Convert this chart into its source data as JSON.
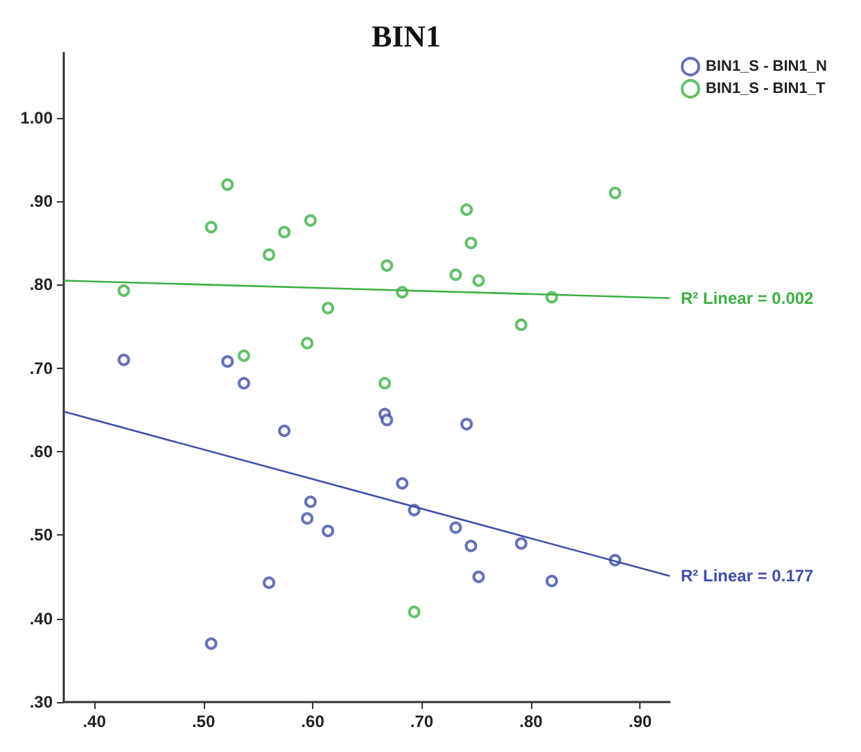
{
  "chart_data": {
    "type": "scatter",
    "title": "BIN1",
    "xlim": [
      0.372,
      0.927
    ],
    "xticks": [
      {
        "value": 0.4,
        "label": ".40"
      },
      {
        "value": 0.5,
        "label": ".50"
      },
      {
        "value": 0.6,
        "label": ".60"
      },
      {
        "value": 0.7,
        "label": ".70"
      },
      {
        "value": 0.8,
        "label": ".80"
      },
      {
        "value": 0.9,
        "label": ".90"
      }
    ],
    "ylim": [
      0.3,
      1.078
    ],
    "yticks": [
      {
        "value": 0.3,
        "label": ".30"
      },
      {
        "value": 0.4,
        "label": ".40"
      },
      {
        "value": 0.5,
        "label": ".50"
      },
      {
        "value": 0.6,
        "label": ".60"
      },
      {
        "value": 0.7,
        "label": ".70"
      },
      {
        "value": 0.8,
        "label": ".80"
      },
      {
        "value": 0.9,
        "label": ".90"
      },
      {
        "value": 1.0,
        "label": "1.00"
      }
    ],
    "grid": false,
    "legend": "top right",
    "marker": "circle",
    "series": [
      {
        "name": "BIN1_S - BIN1_N",
        "color": "#3f4fa8",
        "x": [
          0.427,
          0.522,
          0.537,
          0.574,
          0.666,
          0.668,
          0.682,
          0.693,
          0.598,
          0.595,
          0.614,
          0.56,
          0.507,
          0.731,
          0.745,
          0.752,
          0.741,
          0.791,
          0.819,
          0.877
        ],
        "values": [
          0.71,
          0.708,
          0.682,
          0.625,
          0.645,
          0.638,
          0.562,
          0.53,
          0.54,
          0.52,
          0.505,
          0.443,
          0.37,
          0.509,
          0.487,
          0.45,
          0.633,
          0.49,
          0.445,
          0.47
        ]
      },
      {
        "name": "BIN1_S - BIN1_T",
        "color": "#3cb044",
        "x": [
          0.427,
          0.507,
          0.522,
          0.56,
          0.574,
          0.598,
          0.614,
          0.595,
          0.537,
          0.668,
          0.682,
          0.666,
          0.731,
          0.752,
          0.745,
          0.741,
          0.877,
          0.791,
          0.819,
          0.693
        ],
        "values": [
          0.793,
          0.869,
          0.92,
          0.836,
          0.863,
          0.877,
          0.772,
          0.73,
          0.715,
          0.823,
          0.791,
          0.682,
          0.812,
          0.805,
          0.85,
          0.89,
          0.91,
          0.752,
          0.785,
          0.408
        ]
      },
      {
        "type": "line",
        "color": "#3cb044",
        "marker": "none",
        "x": [
          0.372,
          0.927
        ],
        "values": [
          0.805,
          0.784
        ]
      },
      {
        "type": "line",
        "color": "#3f4fa8",
        "marker": "none",
        "x": [
          0.372,
          0.927
        ],
        "values": [
          0.648,
          0.451
        ]
      }
    ],
    "annotations": [
      {
        "text": "R² Linear = 0.002",
        "x": 0.927,
        "y": 0.784
      },
      {
        "text": "R² Linear = 0.177",
        "x": 0.927,
        "y": 0.451
      }
    ]
  }
}
